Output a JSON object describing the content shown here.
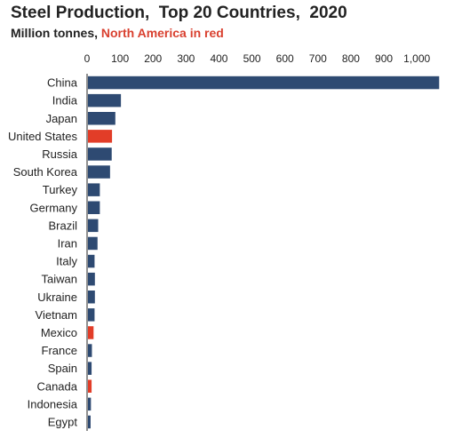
{
  "title": "Steel Production,  Top 20 Countries,  2020",
  "subtitle_prefix": "Million tonnes, ",
  "subtitle_highlight": "North America in red",
  "colors": {
    "default": "#2e4a72",
    "highlight": "#e23d28",
    "axis": "#222222"
  },
  "chart_data": {
    "type": "bar",
    "orientation": "horizontal",
    "title": "Steel Production,  Top 20 Countries,  2020",
    "subtitle": "Million tonnes, North America in red",
    "xlabel": "",
    "ylabel": "",
    "xlim": [
      0,
      1075
    ],
    "xticks": [
      0,
      100,
      200,
      300,
      400,
      500,
      600,
      700,
      800,
      900,
      1000
    ],
    "xtick_labels": [
      "0",
      "100",
      "200",
      "300",
      "400",
      "500",
      "600",
      "700",
      "800",
      "900",
      "1,000"
    ],
    "grid": false,
    "categories": [
      "China",
      "India",
      "Japan",
      "United States",
      "Russia",
      "South Korea",
      "Turkey",
      "Germany",
      "Brazil",
      "Iran",
      "Italy",
      "Taiwan",
      "Ukraine",
      "Vietnam",
      "Mexico",
      "France",
      "Spain",
      "Canada",
      "Indonesia",
      "Egypt"
    ],
    "values": [
      1065,
      100,
      83,
      73,
      72,
      67,
      36,
      36,
      31,
      29,
      20,
      21,
      21,
      20,
      17,
      12,
      11,
      11,
      9,
      8
    ],
    "highlighted": [
      "United States",
      "Mexico",
      "Canada"
    ]
  }
}
